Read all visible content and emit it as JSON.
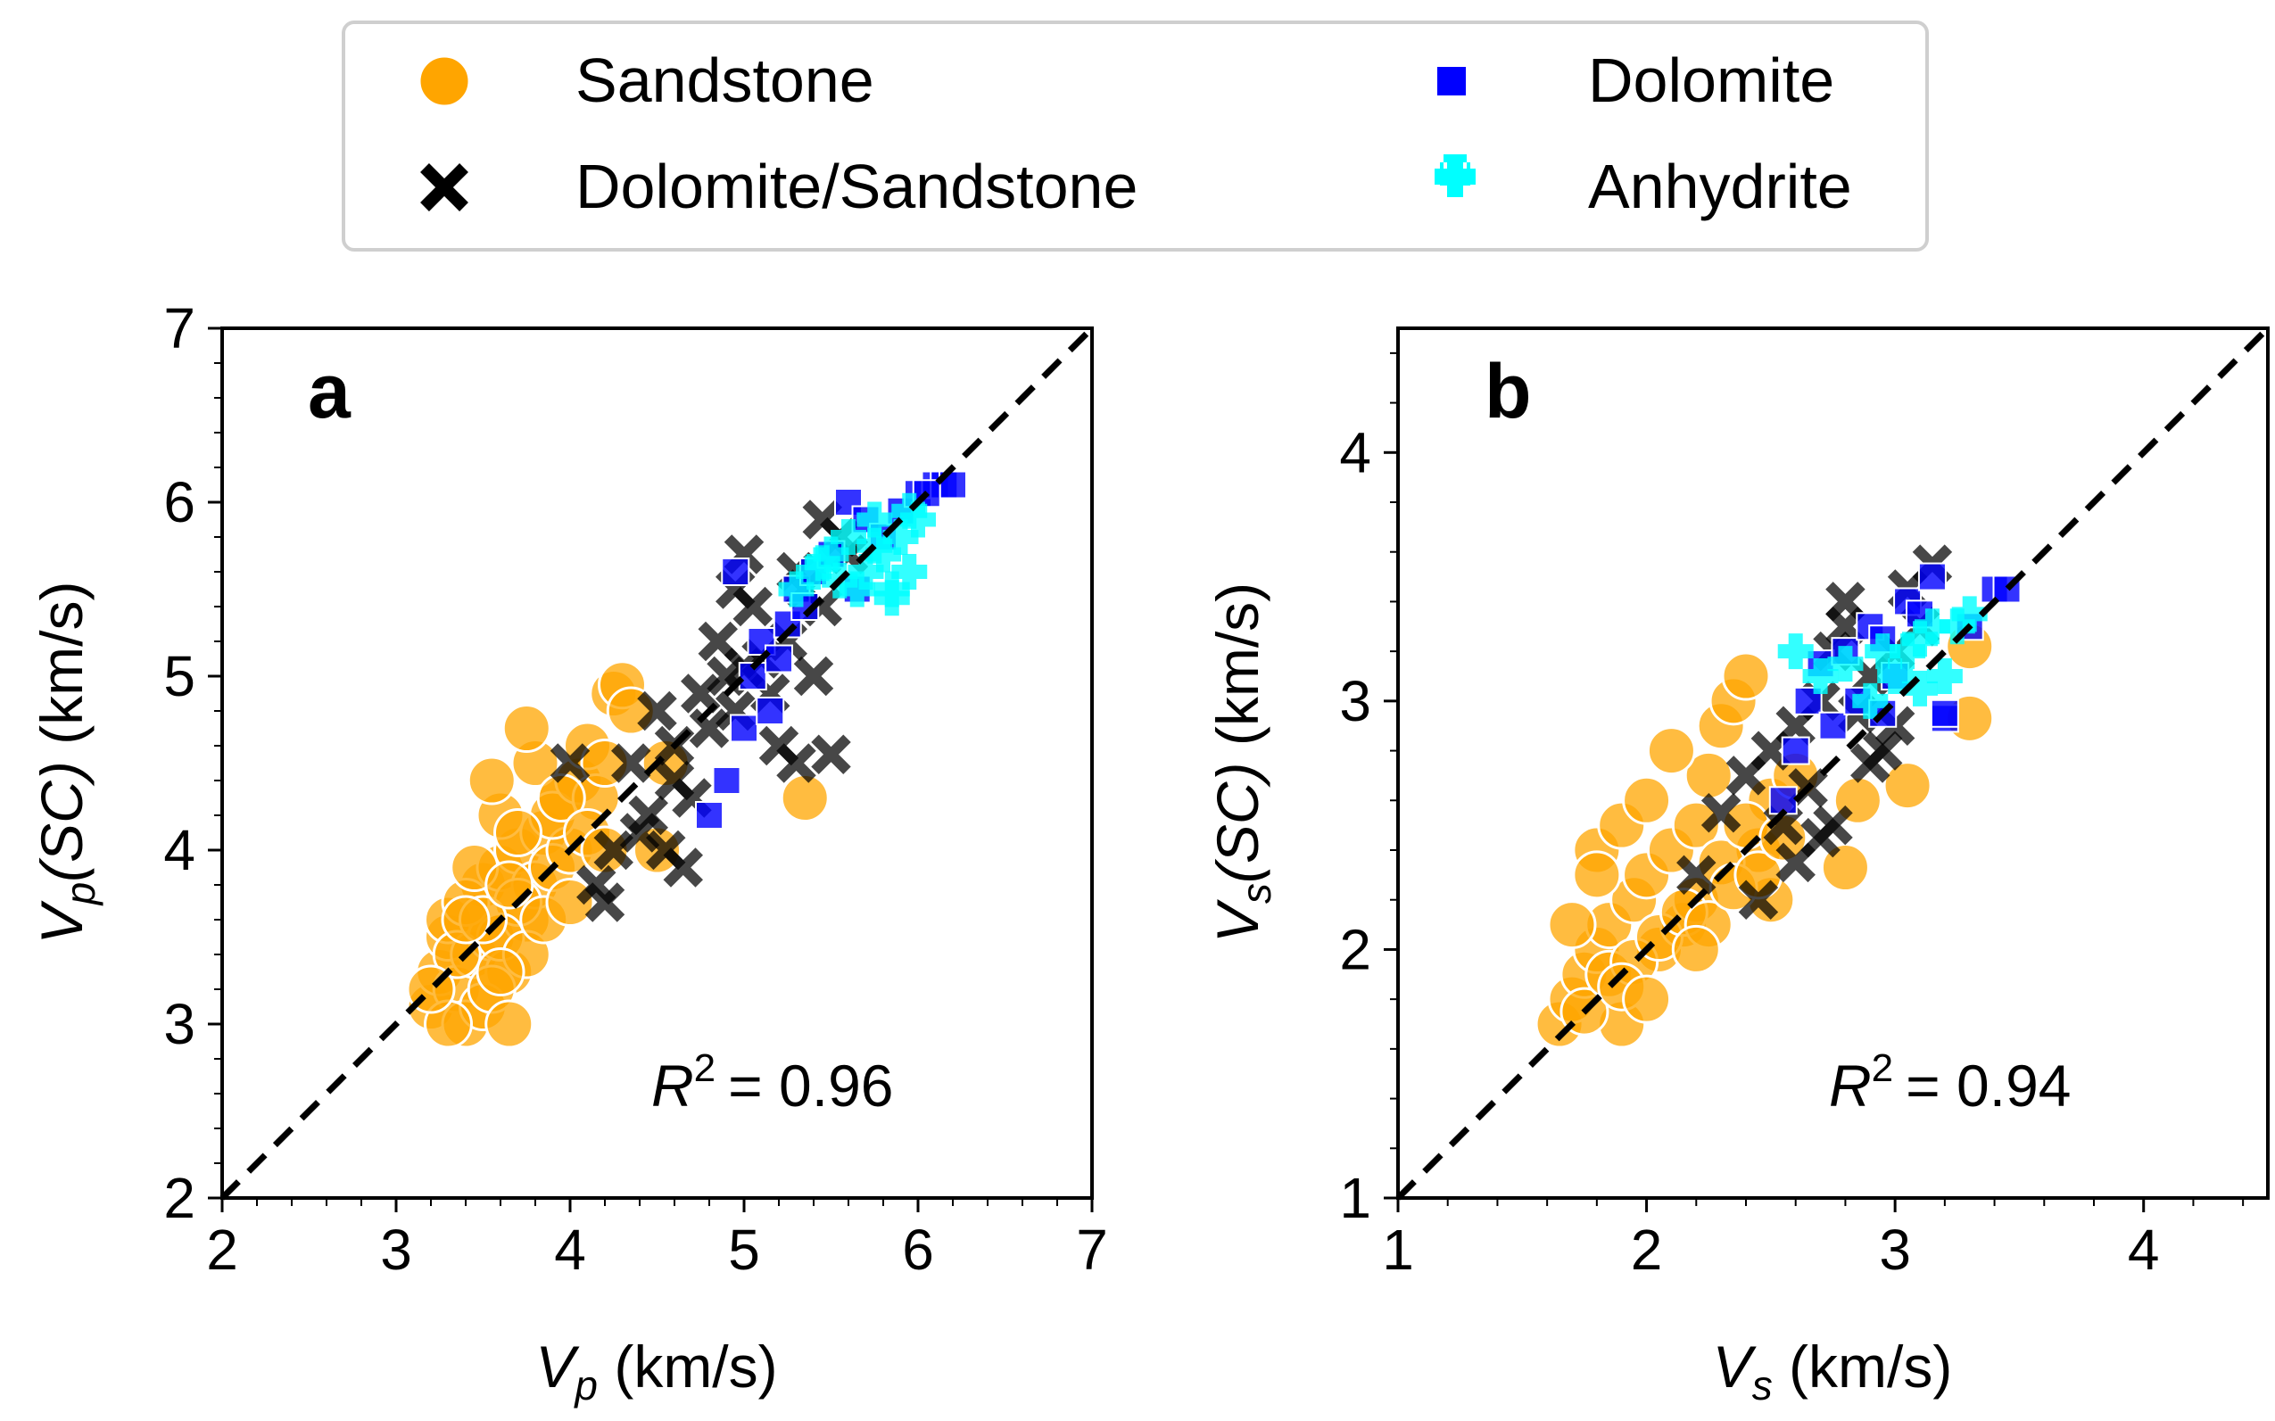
{
  "legend": {
    "entries": [
      {
        "label": "Sandstone",
        "marker": "circle",
        "color": "#FFA500"
      },
      {
        "label": "Dolomite",
        "marker": "square",
        "color": "#0000FF"
      },
      {
        "label": "Dolomite/Sandstone",
        "marker": "x",
        "color": "#000000"
      },
      {
        "label": "Anhydrite",
        "marker": "plus",
        "color": "#00FFFF"
      }
    ]
  },
  "chart_data": [
    {
      "type": "scatter",
      "panel": "a",
      "xlabel_main": "V",
      "xlabel_sub": "p",
      "xlabel_unit": " (km/s)",
      "ylabel_main": "V",
      "ylabel_sub": "p",
      "ylabel_paren": "(SC)",
      "ylabel_unit": " (km/s)",
      "xlim": [
        2,
        7
      ],
      "ylim": [
        2,
        7
      ],
      "xticks": [
        "2",
        "3",
        "4",
        "5",
        "6",
        "7"
      ],
      "yticks": [
        "2",
        "3",
        "4",
        "5",
        "6",
        "7"
      ],
      "minor_step": 0.2,
      "identity_line": true,
      "r2_label": "R",
      "r2_sup": "2",
      "r2_value": "= 0.96",
      "series": [
        {
          "name": "Sandstone",
          "x": [
            3.2,
            3.25,
            3.3,
            3.35,
            3.4,
            3.3,
            3.45,
            3.5,
            3.55,
            3.4,
            3.6,
            3.65,
            3.5,
            3.7,
            3.75,
            3.6,
            3.8,
            3.85,
            3.9,
            3.95,
            4.0,
            3.55,
            3.7,
            3.45,
            3.35,
            3.8,
            3.9,
            4.05,
            4.1,
            4.15,
            4.2,
            3.6,
            3.5,
            3.65,
            3.75,
            3.85,
            4.0,
            4.25,
            4.3,
            4.35,
            4.5,
            3.75,
            3.95,
            4.1,
            4.2,
            3.3,
            3.2,
            3.4,
            3.55,
            3.65,
            5.35,
            4.55,
            3.7,
            3.6
          ],
          "y": [
            3.1,
            3.3,
            3.5,
            3.2,
            3.0,
            3.6,
            3.4,
            3.8,
            3.5,
            3.7,
            3.9,
            3.3,
            3.1,
            4.0,
            3.6,
            4.2,
            3.8,
            4.1,
            3.9,
            4.3,
            4.0,
            4.4,
            3.7,
            3.9,
            3.4,
            4.5,
            4.2,
            4.4,
            4.6,
            4.3,
            4.5,
            3.5,
            3.6,
            3.8,
            3.4,
            3.6,
            3.7,
            4.9,
            4.95,
            4.8,
            4.0,
            4.7,
            4.3,
            4.1,
            4.0,
            3.0,
            3.2,
            3.6,
            3.2,
            3.0,
            4.3,
            4.5,
            4.1,
            3.3
          ]
        },
        {
          "name": "Dolomite/Sandstone",
          "x": [
            4.0,
            4.15,
            4.25,
            4.4,
            4.5,
            4.55,
            4.6,
            4.65,
            4.7,
            4.75,
            4.8,
            4.85,
            4.9,
            4.95,
            5.0,
            5.05,
            5.1,
            5.15,
            5.2,
            5.25,
            5.3,
            5.35,
            5.4,
            5.45,
            5.5,
            5.55,
            5.6,
            4.45,
            4.6,
            4.95,
            5.0,
            5.3,
            5.45,
            4.2,
            4.35
          ],
          "y": [
            4.5,
            3.8,
            4.0,
            4.1,
            4.8,
            4.0,
            4.6,
            3.9,
            4.3,
            4.9,
            4.7,
            5.2,
            5.0,
            4.8,
            5.7,
            5.4,
            5.1,
            4.9,
            4.6,
            5.2,
            5.6,
            5.5,
            5.0,
            5.9,
            4.55,
            5.8,
            5.7,
            4.2,
            4.4,
            5.5,
            5.05,
            4.5,
            5.4,
            3.7,
            4.5
          ]
        },
        {
          "name": "Dolomite",
          "x": [
            4.8,
            4.9,
            5.0,
            5.05,
            5.1,
            5.15,
            5.2,
            5.25,
            5.3,
            5.4,
            5.5,
            5.6,
            5.7,
            5.8,
            5.9,
            6.0,
            6.1,
            6.15,
            6.2,
            4.95,
            5.35,
            5.65,
            6.05
          ],
          "y": [
            4.2,
            4.4,
            4.7,
            5.0,
            5.2,
            4.8,
            5.1,
            5.3,
            5.5,
            5.6,
            5.7,
            6.0,
            5.9,
            5.8,
            5.95,
            6.05,
            6.1,
            6.1,
            6.1,
            5.6,
            5.4,
            5.5,
            6.05
          ]
        },
        {
          "name": "Anhydrite",
          "x": [
            5.3,
            5.4,
            5.5,
            5.6,
            5.65,
            5.7,
            5.75,
            5.8,
            5.85,
            5.9,
            5.95,
            6.0,
            5.55,
            5.75,
            5.85,
            5.95,
            5.45
          ],
          "y": [
            5.5,
            5.6,
            5.7,
            5.8,
            5.5,
            5.6,
            5.9,
            5.7,
            5.5,
            5.8,
            5.6,
            5.9,
            5.55,
            5.75,
            5.45,
            5.95,
            5.65
          ]
        }
      ]
    },
    {
      "type": "scatter",
      "panel": "b",
      "xlabel_main": "V",
      "xlabel_sub": "s",
      "xlabel_unit": " (km/s)",
      "ylabel_main": "V",
      "ylabel_sub": "s",
      "ylabel_paren": "(SC)",
      "ylabel_unit": " (km/s)",
      "xlim": [
        1,
        4.5
      ],
      "ylim": [
        1,
        4.5
      ],
      "xticks": [
        "1",
        "2",
        "3",
        "4"
      ],
      "yticks": [
        "1",
        "2",
        "3",
        "4"
      ],
      "minor_step": 0.2,
      "identity_line": true,
      "r2_label": "R",
      "r2_sup": "2",
      "r2_value": "= 0.94",
      "series": [
        {
          "name": "Sandstone",
          "x": [
            1.65,
            1.7,
            1.75,
            1.8,
            1.85,
            1.9,
            1.95,
            2.0,
            2.05,
            2.1,
            2.15,
            2.2,
            2.25,
            2.3,
            2.35,
            2.4,
            2.45,
            2.5,
            1.7,
            1.8,
            1.9,
            2.0,
            2.1,
            2.2,
            2.3,
            2.4,
            2.5,
            2.6,
            1.75,
            1.85,
            1.95,
            2.05,
            2.15,
            2.25,
            2.35,
            2.45,
            2.55,
            2.8,
            2.85,
            3.05,
            3.3,
            3.3,
            1.8,
            1.9,
            2.0,
            2.2
          ],
          "y": [
            1.7,
            1.8,
            1.9,
            2.0,
            2.1,
            1.7,
            2.2,
            2.3,
            2.0,
            2.4,
            2.1,
            2.5,
            2.7,
            2.9,
            3.0,
            3.1,
            2.4,
            2.6,
            2.1,
            2.4,
            2.5,
            2.6,
            2.8,
            2.2,
            2.35,
            2.5,
            2.2,
            2.7,
            1.75,
            1.9,
            1.95,
            2.05,
            2.15,
            2.1,
            2.25,
            2.3,
            2.45,
            2.33,
            2.6,
            2.66,
            2.93,
            3.22,
            2.3,
            1.85,
            1.8,
            2.0
          ]
        },
        {
          "name": "Dolomite/Sandstone",
          "x": [
            2.2,
            2.3,
            2.4,
            2.5,
            2.55,
            2.6,
            2.65,
            2.7,
            2.75,
            2.8,
            2.85,
            2.9,
            2.95,
            3.0,
            3.05,
            3.1,
            3.15,
            2.45,
            2.7,
            2.8,
            2.9,
            3.0,
            2.6,
            2.75
          ],
          "y": [
            2.3,
            2.55,
            2.7,
            2.8,
            2.5,
            2.9,
            2.65,
            3.0,
            2.5,
            3.4,
            2.95,
            3.1,
            2.8,
            3.2,
            3.45,
            3.3,
            3.55,
            2.2,
            2.45,
            3.3,
            2.75,
            2.9,
            2.35,
            3.2
          ]
        },
        {
          "name": "Dolomite",
          "x": [
            2.55,
            2.6,
            2.65,
            2.7,
            2.75,
            2.8,
            2.85,
            2.9,
            2.95,
            3.0,
            3.05,
            3.1,
            3.15,
            3.2,
            3.3,
            3.4,
            3.45,
            2.95,
            3.2
          ],
          "y": [
            2.6,
            2.8,
            3.0,
            3.15,
            2.9,
            3.2,
            3.0,
            3.3,
            2.95,
            3.1,
            3.4,
            3.35,
            3.5,
            2.93,
            3.3,
            3.45,
            3.45,
            3.25,
            2.95
          ]
        },
        {
          "name": "Anhydrite",
          "x": [
            2.6,
            2.7,
            2.8,
            2.9,
            3.0,
            3.05,
            3.1,
            3.15,
            3.2,
            3.25,
            3.3,
            2.95,
            3.1
          ],
          "y": [
            3.2,
            3.1,
            3.15,
            3.0,
            3.1,
            3.2,
            3.25,
            3.3,
            3.1,
            3.3,
            3.35,
            3.2,
            3.05
          ]
        }
      ]
    }
  ]
}
